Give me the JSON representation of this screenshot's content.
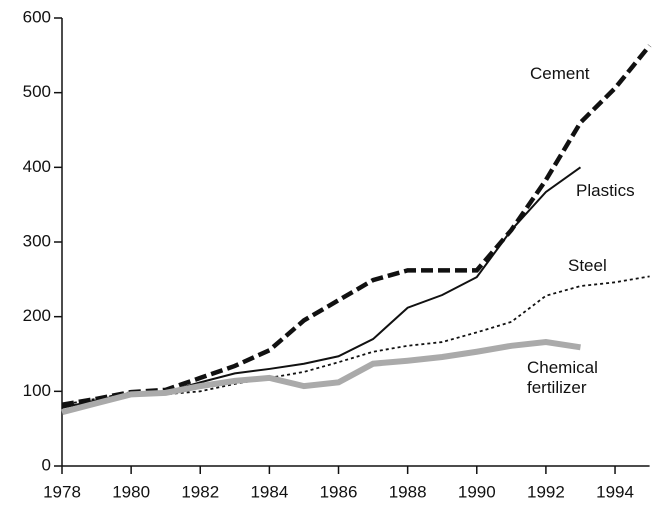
{
  "chart_data": {
    "type": "line",
    "x": [
      1978,
      1979,
      1980,
      1981,
      1982,
      1983,
      1984,
      1985,
      1986,
      1987,
      1988,
      1989,
      1990,
      1991,
      1992,
      1993,
      1994,
      1995
    ],
    "series": [
      {
        "name": "Cement",
        "color": "#111111",
        "line_style": "dashed",
        "values": [
          82,
          90,
          99,
          102,
          118,
          134,
          155,
          195,
          222,
          249,
          262,
          262,
          262,
          316,
          383,
          460,
          506,
          563
        ]
      },
      {
        "name": "Plastics",
        "color": "#111111",
        "line_style": "solid",
        "values": [
          78,
          88,
          98,
          99,
          112,
          124,
          130,
          137,
          147,
          170,
          212,
          229,
          253,
          316,
          367,
          400,
          null,
          null
        ]
      },
      {
        "name": "Steel",
        "color": "#111111",
        "line_style": "dotted",
        "values": [
          82,
          90,
          99,
          96,
          100,
          110,
          118,
          126,
          139,
          153,
          161,
          166,
          179,
          193,
          228,
          241,
          246,
          254
        ]
      },
      {
        "name": "Chemical fertilizer",
        "color": "#aaaaaa",
        "line_style": "thick",
        "values": [
          72,
          84,
          96,
          98,
          107,
          114,
          118,
          107,
          112,
          137,
          141,
          146,
          153,
          161,
          166,
          159,
          null,
          null
        ]
      }
    ],
    "xlim": [
      1978,
      1995
    ],
    "xticks": [
      1978,
      1980,
      1982,
      1984,
      1986,
      1988,
      1990,
      1992,
      1994
    ],
    "ylim": [
      0,
      600
    ],
    "yticks": [
      0,
      100,
      200,
      300,
      400,
      500,
      600
    ],
    "grid": false
  }
}
